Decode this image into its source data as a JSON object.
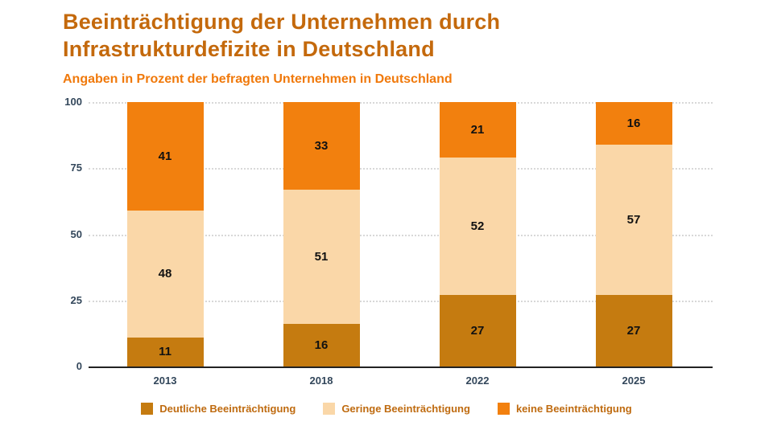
{
  "header": {
    "title_line1": "Beeinträchtigung der Unternehmen durch",
    "title_line2": "Infrastrukturdefizite in Deutschland",
    "subtitle": "Angaben in Prozent der befragten Unternehmen in Deutschland"
  },
  "colors": {
    "title": "#C4690C",
    "subtitle": "#F0790B",
    "axis_text": "#33475B",
    "axis_line": "#222222",
    "gridline": "#D8D8D8",
    "value_label": "#111111",
    "legend_text": "#BF6B10",
    "series_deutlich": "#C57B10",
    "series_gering": "#FAD7A8",
    "series_keine": "#F2800E"
  },
  "chart_data": {
    "type": "bar",
    "stacked": true,
    "title": "Beeinträchtigung der Unternehmen durch Infrastrukturdefizite in Deutschland",
    "subtitle": "Angaben in Prozent der befragten Unternehmen in Deutschland",
    "categories": [
      "2013",
      "2018",
      "2022",
      "2025"
    ],
    "series": [
      {
        "name": "Deutliche Beeinträchtigung",
        "color": "#C57B10",
        "values": [
          11,
          16,
          27,
          27
        ]
      },
      {
        "name": "Geringe Beeinträchtigung",
        "color": "#FAD7A8",
        "values": [
          48,
          51,
          52,
          57
        ]
      },
      {
        "name": "keine Beeinträchtigung",
        "color": "#F2800E",
        "values": [
          41,
          33,
          21,
          16
        ]
      }
    ],
    "xlabel": "",
    "ylabel": "",
    "ylim": [
      0,
      100
    ],
    "yticks": [
      0,
      25,
      50,
      75,
      100
    ],
    "grid": "horizontal-dotted",
    "legend_position": "bottom",
    "value_labels": true
  }
}
